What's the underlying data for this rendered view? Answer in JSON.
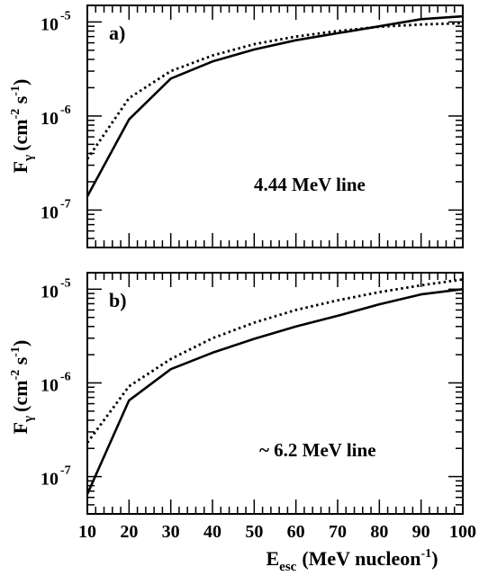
{
  "chart_data": [
    {
      "type": "line",
      "panel_label": "a)",
      "annotation": "4.44 MeV line",
      "ylabel": {
        "main": "F",
        "sub": "γ",
        "unit": "(cm",
        "exp1": "-2",
        "mid": " s",
        "exp2": "-1",
        "close": ")"
      },
      "yscale": "log",
      "ylim": [
        4e-08,
        1.5e-05
      ],
      "xlim": [
        10,
        100
      ],
      "y_major_ticks": [
        {
          "value": 1e-07,
          "base": "10",
          "exp": "-7"
        },
        {
          "value": 1e-06,
          "base": "10",
          "exp": "-6"
        },
        {
          "value": 1e-05,
          "base": "10",
          "exp": "-5"
        }
      ],
      "x": [
        10,
        20,
        30,
        40,
        50,
        60,
        70,
        80,
        90,
        100
      ],
      "series": [
        {
          "style": "solid",
          "values": [
            1.4e-07,
            9.2e-07,
            2.5e-06,
            3.8e-06,
            5.1e-06,
            6.4e-06,
            7.6e-06,
            9e-06,
            1.07e-05,
            1.15e-05
          ]
        },
        {
          "style": "dotted",
          "values": [
            3.5e-07,
            1.55e-06,
            3e-06,
            4.4e-06,
            5.8e-06,
            7e-06,
            8e-06,
            8.9e-06,
            9.4e-06,
            9.7e-06
          ]
        }
      ]
    },
    {
      "type": "line",
      "panel_label": "b)",
      "annotation": "~ 6.2 MeV line",
      "ylabel": {
        "main": "F",
        "sub": "γ",
        "unit": "(cm",
        "exp1": "-2",
        "mid": " s",
        "exp2": "-1",
        "close": ")"
      },
      "yscale": "log",
      "ylim": [
        4e-08,
        1.5e-05
      ],
      "xlim": [
        10,
        100
      ],
      "y_major_ticks": [
        {
          "value": 1e-07,
          "base": "10",
          "exp": "-7"
        },
        {
          "value": 1e-06,
          "base": "10",
          "exp": "-6"
        },
        {
          "value": 1e-05,
          "base": "10",
          "exp": "-5"
        }
      ],
      "x": [
        10,
        20,
        30,
        40,
        50,
        60,
        70,
        80,
        90,
        100
      ],
      "series": [
        {
          "style": "solid",
          "values": [
            6.5e-08,
            6.5e-07,
            1.4e-06,
            2.1e-06,
            2.95e-06,
            4e-06,
            5.2e-06,
            6.9e-06,
            8.8e-06,
            1e-05
          ]
        },
        {
          "style": "dotted",
          "values": [
            2.3e-07,
            9.2e-07,
            1.8e-06,
            3e-06,
            4.4e-06,
            6e-06,
            7.6e-06,
            9.3e-06,
            1.1e-05,
            1.27e-05
          ]
        }
      ]
    }
  ],
  "x_ticks": [
    "10",
    "20",
    "30",
    "40",
    "50",
    "60",
    "70",
    "80",
    "90",
    "100"
  ],
  "xlabel": {
    "main": "E",
    "sub": "esc",
    "unit": "(MeV nucleon",
    "exp": "-1",
    "close": ")"
  }
}
